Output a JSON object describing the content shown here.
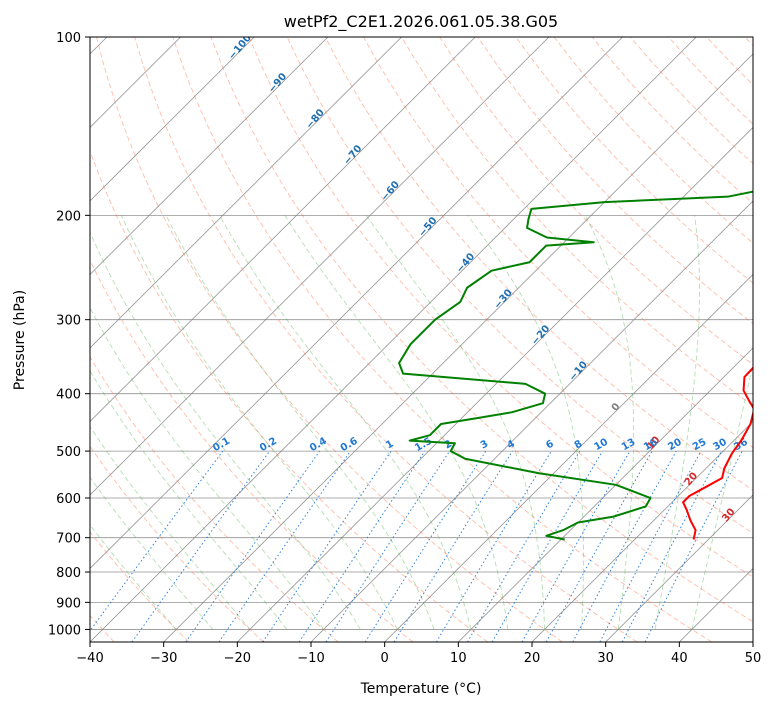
{
  "chart_data": {
    "type": "line",
    "title": "wetPf2_C2E1.2026.061.05.38.G05",
    "xlabel": "Temperature (°C)",
    "ylabel": "Pressure (hPa)",
    "xlim": [
      -40,
      50
    ],
    "ylim": [
      1050,
      100
    ],
    "y_scale": "log",
    "x_ticks": [
      "−40",
      "−30",
      "−20",
      "−10",
      "0",
      "10",
      "20",
      "30",
      "40",
      "50"
    ],
    "x_tick_values": [
      -40,
      -30,
      -20,
      -10,
      0,
      10,
      20,
      30,
      40,
      50
    ],
    "y_ticks": [
      "100",
      "200",
      "300",
      "400",
      "500",
      "600",
      "700",
      "800",
      "900",
      "1000"
    ],
    "y_tick_values": [
      100,
      200,
      300,
      400,
      500,
      600,
      700,
      800,
      900,
      1000
    ],
    "skew_factor": 35,
    "grid": true,
    "series": [
      {
        "name": "Temperature",
        "color": "#ff0000",
        "points": [
          [
            28.0,
            705
          ],
          [
            27.0,
            680
          ],
          [
            25.0,
            655
          ],
          [
            23.0,
            628
          ],
          [
            21.5,
            610
          ],
          [
            21.5,
            595
          ],
          [
            22.5,
            575
          ],
          [
            23.5,
            555
          ],
          [
            22.5,
            535
          ],
          [
            21.5,
            505
          ],
          [
            21.0,
            480
          ],
          [
            20.0,
            450
          ],
          [
            18.5,
            425
          ],
          [
            16.5,
            410
          ],
          [
            14.5,
            395
          ],
          [
            12.8,
            375
          ],
          [
            12.7,
            360
          ],
          [
            13.8,
            350
          ],
          [
            13.3,
            330
          ],
          [
            11.0,
            310
          ],
          [
            7.0,
            280
          ],
          [
            3.0,
            255
          ],
          [
            -1.0,
            233
          ],
          [
            -3.0,
            222
          ],
          [
            -5.0,
            200
          ],
          [
            -8.0,
            175
          ],
          [
            -12.0,
            152
          ],
          [
            -15.0,
            135
          ],
          [
            -18.5,
            118
          ],
          [
            -20.5,
            110
          ],
          [
            -22.0,
            106
          ],
          [
            -22.5,
            100
          ]
        ]
      },
      {
        "name": "Dewpoint",
        "color": "#008000",
        "points": [
          [
            10.5,
            705
          ],
          [
            7.5,
            695
          ],
          [
            9.0,
            680
          ],
          [
            10.0,
            660
          ],
          [
            14.0,
            645
          ],
          [
            17.0,
            620
          ],
          [
            16.5,
            600
          ],
          [
            10.0,
            570
          ],
          [
            -2.0,
            545
          ],
          [
            -14.0,
            515
          ],
          [
            -17.0,
            500
          ],
          [
            -17.5,
            485
          ],
          [
            -24.0,
            480
          ],
          [
            -22.0,
            470
          ],
          [
            -22.0,
            450
          ],
          [
            -18.0,
            440
          ],
          [
            -14.0,
            430
          ],
          [
            -11.0,
            415
          ],
          [
            -12.0,
            400
          ],
          [
            -16.0,
            385
          ],
          [
            -34.0,
            370
          ],
          [
            -36.0,
            355
          ],
          [
            -37.0,
            330
          ],
          [
            -37.0,
            300
          ],
          [
            -36.0,
            280
          ],
          [
            -37.0,
            265
          ],
          [
            -36.0,
            248
          ],
          [
            -32.0,
            240
          ],
          [
            -32.0,
            225
          ],
          [
            -26.0,
            222
          ],
          [
            -33.0,
            218
          ],
          [
            -37.0,
            210
          ],
          [
            -38.0,
            203
          ],
          [
            -39.0,
            195
          ],
          [
            -30.0,
            190
          ],
          [
            -14.0,
            186
          ],
          [
            -5.5,
            175
          ],
          [
            -5.5,
            160
          ],
          [
            -8.0,
            140
          ],
          [
            -13.0,
            120
          ],
          [
            -15.0,
            110
          ],
          [
            -13.5,
            100
          ]
        ]
      }
    ],
    "dry_adiabat_labels": [
      "−100",
      "−90",
      "−80",
      "−70",
      "−60",
      "−50",
      "−40",
      "−30",
      "−20",
      "−10",
      "0",
      "10",
      "20",
      "30",
      "40"
    ],
    "dry_adiabat_values": [
      -100,
      -90,
      -80,
      -70,
      -60,
      -50,
      -40,
      -30,
      -20,
      -10,
      0,
      10,
      20,
      30,
      40
    ],
    "mixing_ratio_labels": [
      "0.1",
      "0.2",
      "0.4",
      "0.6",
      "1",
      "1.5",
      "2",
      "3",
      "4",
      "6",
      "8",
      "10",
      "13",
      "16",
      "20",
      "25",
      "30",
      "36"
    ],
    "mixing_ratio_values": [
      0.1,
      0.2,
      0.4,
      0.6,
      1,
      1.5,
      2,
      3,
      4,
      6,
      8,
      10,
      13,
      16,
      20,
      25,
      30,
      36
    ],
    "colors": {
      "temperature": "#ff0000",
      "dewpoint": "#008000",
      "dry_adiabat": "#ff6a3d",
      "moist_adiabat": "#2ca02c",
      "mixing_ratio": "#1f77d4",
      "isotherm": "#808080",
      "label_cold": "#1f6fb2",
      "label_zero": "#808080",
      "label_warm": "#d62728"
    }
  }
}
